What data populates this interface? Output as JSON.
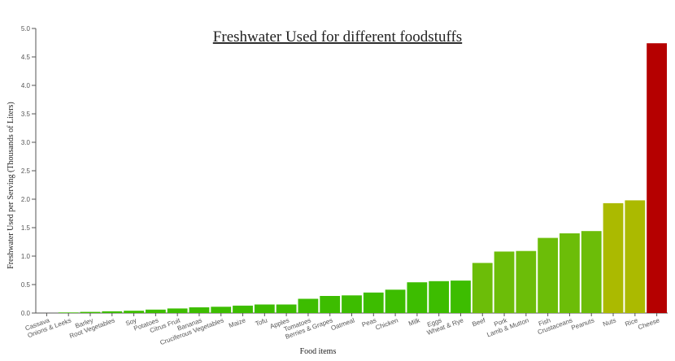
{
  "chart_data": {
    "type": "bar",
    "title": "Freshwater Used for different foodstuffs",
    "xlabel": "Food items",
    "ylabel": "Freshwater Used per Serving (Thousands of Liters)",
    "ylim": [
      0,
      5.0
    ],
    "yticks": [
      "0.0",
      "0.5",
      "1.0",
      "1.5",
      "2.0",
      "2.5",
      "3.0",
      "3.5",
      "4.0",
      "4.5",
      "5.0"
    ],
    "grid": false,
    "legend": "none",
    "categories": [
      "Cassava",
      "Onions & Leeks",
      "Barley",
      "Root Vegetables",
      "Soy",
      "Potatoes",
      "Citrus Fruit",
      "Bananas",
      "Cruciferous Vegetables",
      "Maize",
      "Tofu",
      "Apples",
      "Tomatoes",
      "Berries & Grapes",
      "Oatmeal",
      "Peas",
      "Chicken",
      "Milk",
      "Eggs",
      "Wheat & Rye",
      "Beef",
      "Pork",
      "Lamb & Mutton",
      "Fish",
      "Crustaceans",
      "Peanuts",
      "Nuts",
      "Rice",
      "Cheese"
    ],
    "values": [
      0.0,
      0.01,
      0.02,
      0.03,
      0.04,
      0.06,
      0.08,
      0.1,
      0.11,
      0.13,
      0.15,
      0.15,
      0.25,
      0.3,
      0.31,
      0.36,
      0.41,
      0.54,
      0.56,
      0.57,
      0.88,
      1.08,
      1.09,
      1.32,
      1.4,
      1.44,
      1.93,
      1.98,
      4.74
    ],
    "colors": [
      "#3dbd00",
      "#3dbd00",
      "#3dbd00",
      "#3dbd00",
      "#3dbd00",
      "#3dbd00",
      "#3dbd00",
      "#3dbd00",
      "#3dbd00",
      "#3dbd00",
      "#3dbd00",
      "#3dbd00",
      "#3dbd00",
      "#3dbd00",
      "#3dbd00",
      "#3dbd00",
      "#3dbd00",
      "#3dbd00",
      "#3dbd00",
      "#3dbd00",
      "#6cbd08",
      "#6cbd08",
      "#6cbd08",
      "#6cbd08",
      "#6cbd08",
      "#6cbd08",
      "#abba00",
      "#abba00",
      "#b50000"
    ]
  }
}
